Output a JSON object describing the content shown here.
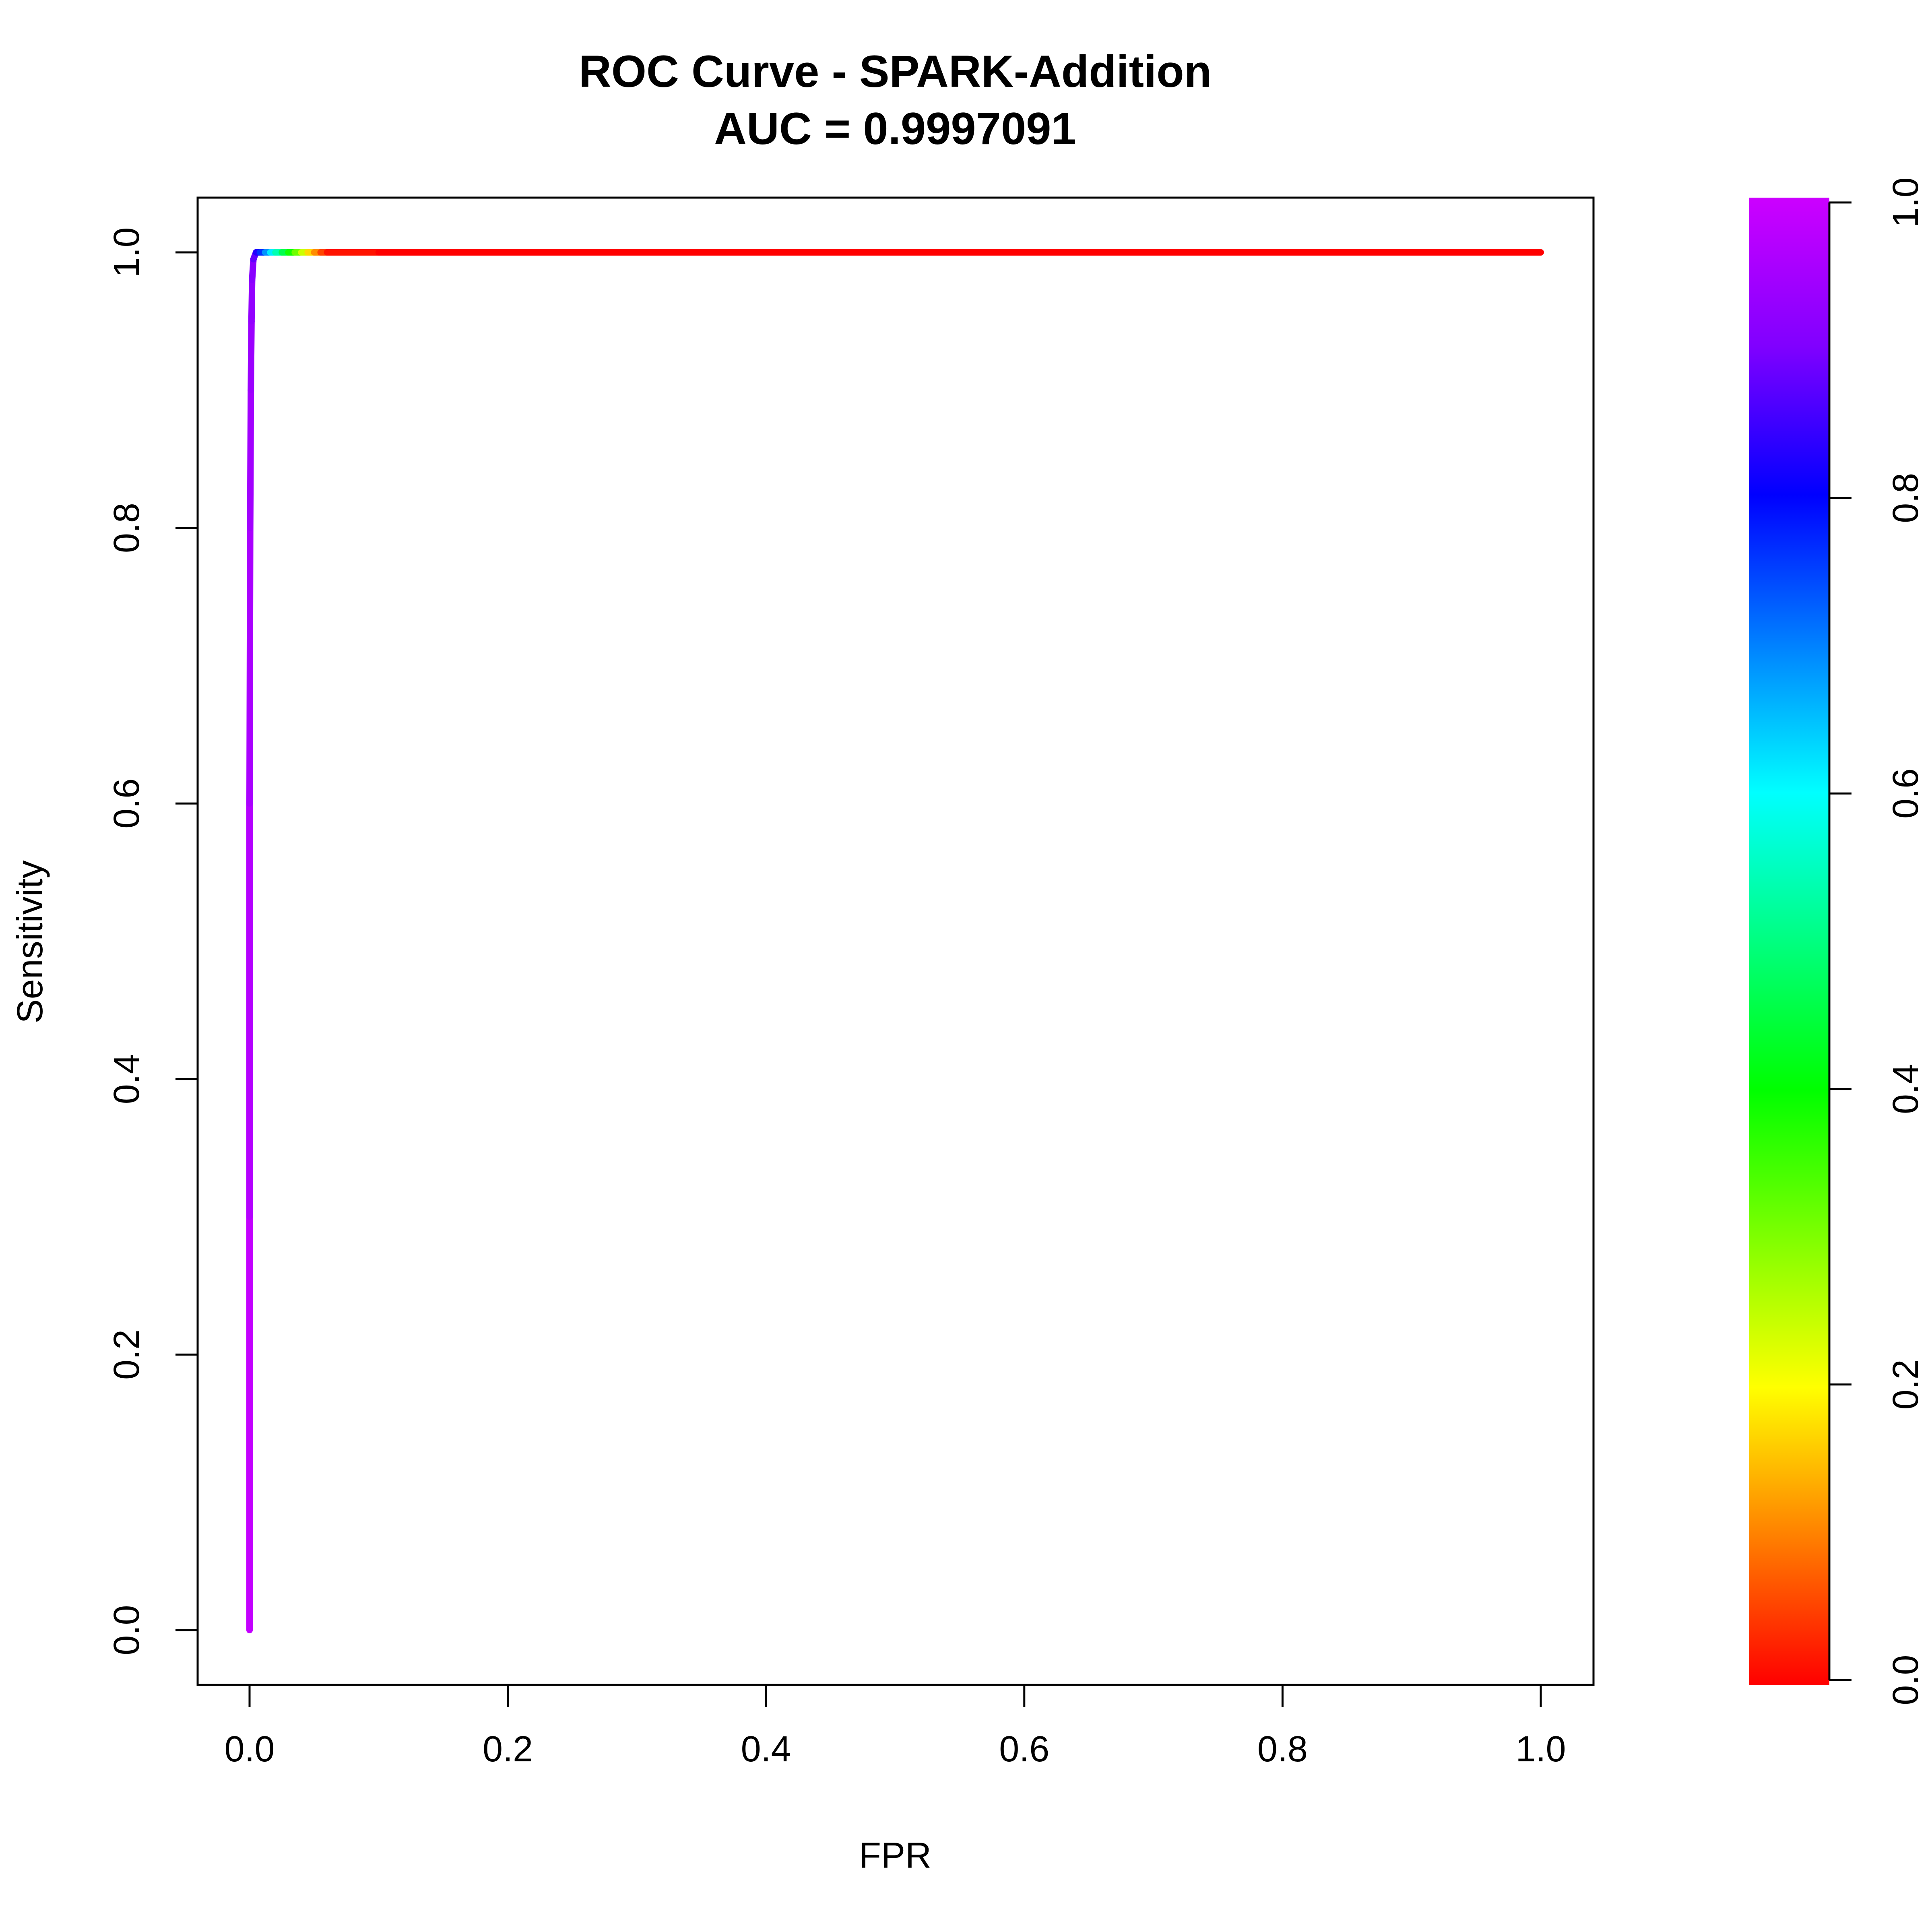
{
  "chart_data": {
    "type": "line",
    "title": "ROC Curve - SPARK-Addition",
    "subtitle": "AUC = 0.9997091",
    "xlabel": "FPR",
    "ylabel": "Sensitivity",
    "xlim": [
      0,
      1
    ],
    "ylim": [
      0,
      1
    ],
    "grid": false,
    "x_ticks": [
      {
        "value": 0.0,
        "label": "0.0"
      },
      {
        "value": 0.2,
        "label": "0.2"
      },
      {
        "value": 0.4,
        "label": "0.4"
      },
      {
        "value": 0.6,
        "label": "0.6"
      },
      {
        "value": 0.8,
        "label": "0.8"
      },
      {
        "value": 1.0,
        "label": "1.0"
      }
    ],
    "y_ticks": [
      {
        "value": 0.0,
        "label": "0.0"
      },
      {
        "value": 0.2,
        "label": "0.2"
      },
      {
        "value": 0.4,
        "label": "0.4"
      },
      {
        "value": 0.6,
        "label": "0.6"
      },
      {
        "value": 0.8,
        "label": "0.8"
      },
      {
        "value": 1.0,
        "label": "1.0"
      }
    ],
    "series": [
      {
        "points": [
          {
            "x": 0.0,
            "y": 0.0,
            "threshold": 1.0
          },
          {
            "x": 0.0,
            "y": 0.3,
            "threshold": 0.98
          },
          {
            "x": 0.0,
            "y": 0.6,
            "threshold": 0.96
          },
          {
            "x": 0.0005,
            "y": 0.8,
            "threshold": 0.95
          },
          {
            "x": 0.001,
            "y": 0.9,
            "threshold": 0.94
          },
          {
            "x": 0.0015,
            "y": 0.95,
            "threshold": 0.93
          },
          {
            "x": 0.002,
            "y": 0.98,
            "threshold": 0.92
          },
          {
            "x": 0.003,
            "y": 0.995,
            "threshold": 0.9
          },
          {
            "x": 0.005,
            "y": 1.0,
            "threshold": 0.85
          },
          {
            "x": 0.008,
            "y": 1.0,
            "threshold": 0.8
          },
          {
            "x": 0.012,
            "y": 1.0,
            "threshold": 0.72
          },
          {
            "x": 0.016,
            "y": 1.0,
            "threshold": 0.65
          },
          {
            "x": 0.02,
            "y": 1.0,
            "threshold": 0.58
          },
          {
            "x": 0.025,
            "y": 1.0,
            "threshold": 0.5
          },
          {
            "x": 0.03,
            "y": 1.0,
            "threshold": 0.42
          },
          {
            "x": 0.035,
            "y": 1.0,
            "threshold": 0.35
          },
          {
            "x": 0.04,
            "y": 1.0,
            "threshold": 0.28
          },
          {
            "x": 0.045,
            "y": 1.0,
            "threshold": 0.2
          },
          {
            "x": 0.05,
            "y": 1.0,
            "threshold": 0.14
          },
          {
            "x": 0.055,
            "y": 1.0,
            "threshold": 0.08
          },
          {
            "x": 0.06,
            "y": 1.0,
            "threshold": 0.03
          },
          {
            "x": 0.1,
            "y": 1.0,
            "threshold": 0.0
          },
          {
            "x": 0.5,
            "y": 1.0,
            "threshold": 0.0
          },
          {
            "x": 1.0,
            "y": 1.0,
            "threshold": 0.0
          }
        ]
      }
    ],
    "colorbar": {
      "range": [
        0,
        1
      ],
      "colors": [
        "#FF0000",
        "#FF8000",
        "#FFFF00",
        "#80FF00",
        "#00FF00",
        "#00FF80",
        "#00FFFF",
        "#0080FF",
        "#0000FF",
        "#8000FF",
        "#CC00FF"
      ],
      "ticks": [
        {
          "value": 0.0,
          "label": "0.0"
        },
        {
          "value": 0.2,
          "label": "0.2"
        },
        {
          "value": 0.4,
          "label": "0.4"
        },
        {
          "value": 0.6,
          "label": "0.6"
        },
        {
          "value": 0.8,
          "label": "0.8"
        },
        {
          "value": 1.0,
          "label": "1.0"
        }
      ]
    }
  }
}
